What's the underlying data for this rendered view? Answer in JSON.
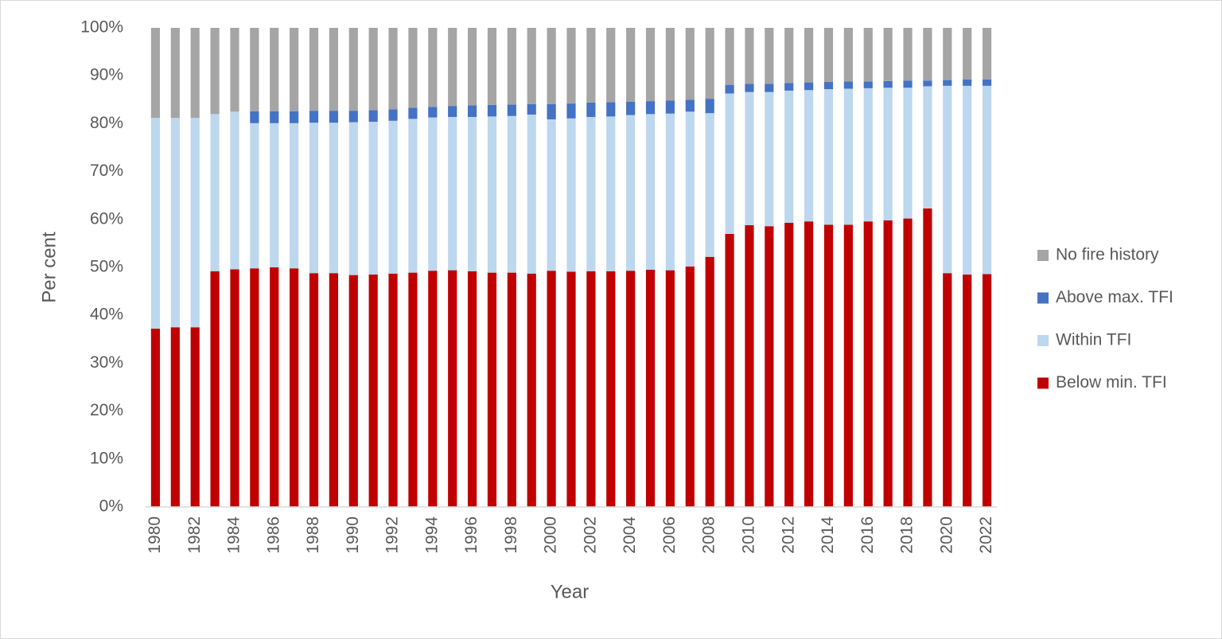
{
  "chart_data": {
    "type": "stacked-bar",
    "x_label": "Year",
    "y_label": "Per cent",
    "categories": [
      "1980",
      null,
      "1982",
      null,
      "1984",
      null,
      "1986",
      null,
      "1988",
      null,
      "1990",
      null,
      "1992",
      null,
      "1994",
      null,
      "1996",
      null,
      "1998",
      null,
      "2000",
      null,
      "2002",
      null,
      "2004",
      null,
      "2006",
      null,
      "2008",
      null,
      "2010",
      null,
      "2012",
      null,
      "2014",
      null,
      "2016",
      null,
      "2018",
      null,
      "2020",
      null,
      "2022"
    ],
    "series": [
      {
        "name": "Below min. TFI",
        "color": "#c00000",
        "values": [
          37.2,
          37.5,
          37.5,
          49.2,
          49.6,
          49.8,
          50.0,
          49.8,
          48.8,
          48.8,
          48.4,
          48.5,
          48.7,
          48.9,
          49.3,
          49.4,
          49.2,
          48.9,
          48.9,
          48.7,
          49.3,
          49.1,
          49.2,
          49.2,
          49.3,
          49.5,
          49.4,
          50.2,
          52.2,
          57.0,
          58.8,
          58.6,
          59.3,
          59.6,
          58.9,
          58.9,
          59.6,
          59.8,
          60.2,
          62.3,
          48.8,
          48.5,
          48.6
        ]
      },
      {
        "name": "Within TFI",
        "color": "#bdd7ee",
        "values": [
          44.0,
          43.7,
          43.7,
          32.8,
          32.9,
          30.3,
          30.1,
          30.3,
          31.4,
          31.4,
          31.9,
          31.9,
          31.9,
          32.1,
          32.0,
          32.0,
          32.2,
          32.6,
          32.7,
          33.2,
          31.6,
          32.0,
          32.2,
          32.3,
          32.5,
          32.5,
          32.7,
          32.3,
          30.0,
          29.3,
          27.8,
          28.0,
          27.6,
          27.4,
          28.3,
          28.4,
          27.8,
          27.7,
          27.3,
          25.5,
          39.1,
          39.4,
          39.3
        ]
      },
      {
        "name": "Above max. TFI",
        "color": "#4472c4",
        "values": [
          0,
          0,
          0,
          0,
          0,
          2.5,
          2.5,
          2.5,
          2.5,
          2.5,
          2.4,
          2.4,
          2.4,
          2.3,
          2.2,
          2.3,
          2.4,
          2.4,
          2.4,
          2.2,
          3.2,
          3.1,
          3.0,
          3.0,
          2.8,
          2.7,
          2.7,
          2.5,
          3.0,
          1.8,
          1.7,
          1.7,
          1.6,
          1.6,
          1.5,
          1.5,
          1.4,
          1.4,
          1.5,
          1.2,
          1.2,
          1.3,
          1.3
        ]
      },
      {
        "name": "No fire history",
        "color": "#a5a5a5",
        "values": [
          18.8,
          18.8,
          18.8,
          18.0,
          17.5,
          17.4,
          17.4,
          17.4,
          17.3,
          17.3,
          17.3,
          17.2,
          17.0,
          16.7,
          16.5,
          16.3,
          16.2,
          16.1,
          16.0,
          15.9,
          15.9,
          15.8,
          15.6,
          15.5,
          15.4,
          15.3,
          15.2,
          15.0,
          14.8,
          11.9,
          11.7,
          11.7,
          11.5,
          11.4,
          11.3,
          11.2,
          11.2,
          11.1,
          11.0,
          11.0,
          10.9,
          10.8,
          10.8
        ]
      }
    ],
    "ylim": [
      0,
      100
    ],
    "yticks": [
      {
        "value": 0,
        "label": "0%"
      },
      {
        "value": 10,
        "label": "10%"
      },
      {
        "value": 20,
        "label": "20%"
      },
      {
        "value": 30,
        "label": "30%"
      },
      {
        "value": 40,
        "label": "40%"
      },
      {
        "value": 50,
        "label": "50%"
      },
      {
        "value": 60,
        "label": "60%"
      },
      {
        "value": 70,
        "label": "70%"
      },
      {
        "value": 80,
        "label": "80%"
      },
      {
        "value": 90,
        "label": "90%"
      },
      {
        "value": 100,
        "label": "100%"
      }
    ],
    "grid": false,
    "legend": "right"
  }
}
